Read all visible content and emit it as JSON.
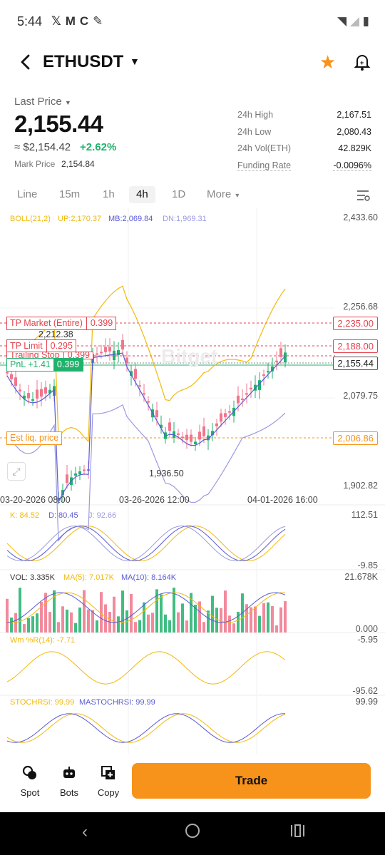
{
  "status_bar": {
    "time": "5:44",
    "icons": [
      "x-icon",
      "gmail-icon",
      "c-icon",
      "feather-icon"
    ],
    "right_icons": [
      "wifi-icon",
      "signal-icon",
      "battery-icon"
    ]
  },
  "header": {
    "symbol": "ETHUSDT"
  },
  "price": {
    "last_price_label": "Last Price",
    "last_price": "2,155.44",
    "usd_value": "≈ $2,154.42",
    "change": "+2.62%",
    "mark_label": "Mark Price",
    "mark_value": "2,154.84"
  },
  "stats": [
    {
      "label": "24h High",
      "value": "2,167.51"
    },
    {
      "label": "24h Low",
      "value": "2,080.43"
    },
    {
      "label": "24h Vol(ETH)",
      "value": "42.829K"
    },
    {
      "label": "Funding Rate",
      "value": "-0.0096%"
    }
  ],
  "tabs": [
    "Line",
    "15m",
    "1h",
    "4h",
    "1D",
    "More"
  ],
  "active_tab": "4h",
  "chart": {
    "boll": "BOLL(21,2)",
    "up": "UP:2,170.37",
    "mb": "MB:2,069.84",
    "dn": "DN:1,969.31",
    "price_axis": [
      "2,433.60",
      "2,256.68",
      "2,079.75",
      "1,902.82"
    ],
    "high_label": "2,212.38",
    "low_label": "1,936.50",
    "dates": [
      "03-20-2026 08:00",
      "03-26-2026 12:00",
      "04-01-2026 16:00"
    ],
    "orders": {
      "tp_market": "TP Market (Entire)",
      "tp_market_qty": "0.399",
      "tp_market_price": "2,235.00",
      "tp_limit": "TP Limit",
      "tp_limit_qty": "0.295",
      "tp_limit_price": "2,188.00",
      "trailing": "Trailing Stop",
      "trailing_qty": "0.399",
      "pnl": "PnL +1.41",
      "pnl_qty": "0.399",
      "current_price": "2,155.44",
      "liq": "Est liq. price",
      "liq_price": "2,006.86"
    },
    "watermark": "Bitget",
    "colors": {
      "up": "#20b26c",
      "down": "#f0768c",
      "boll_up": "#f1b90c",
      "boll_mb": "#5a5ad6",
      "boll_dn": "#9a9ae0",
      "tp": "#e5434f",
      "liq": "#f7931a"
    }
  },
  "kdj": {
    "k": "K: 84.52",
    "d": "D: 80.45",
    "j": "J: 92.66",
    "max": "112.51",
    "min": "-9.85"
  },
  "volume": {
    "vol": "VOL: 3.335K",
    "ma5": "MA(5): 7.017K",
    "ma10": "MA(10): 8.164K",
    "max": "21.678K",
    "min": "0.000"
  },
  "wr": {
    "label": "Wm %R(14): -7.71",
    "max": "-5.95",
    "min": "-95.62"
  },
  "stochrsi": {
    "label": "STOCHRSI: 99.99",
    "mast": "MASTOCHRSI: 99.99",
    "max": "99.99"
  },
  "bottom": {
    "spot": "Spot",
    "bots": "Bots",
    "copy": "Copy",
    "trade": "Trade"
  }
}
